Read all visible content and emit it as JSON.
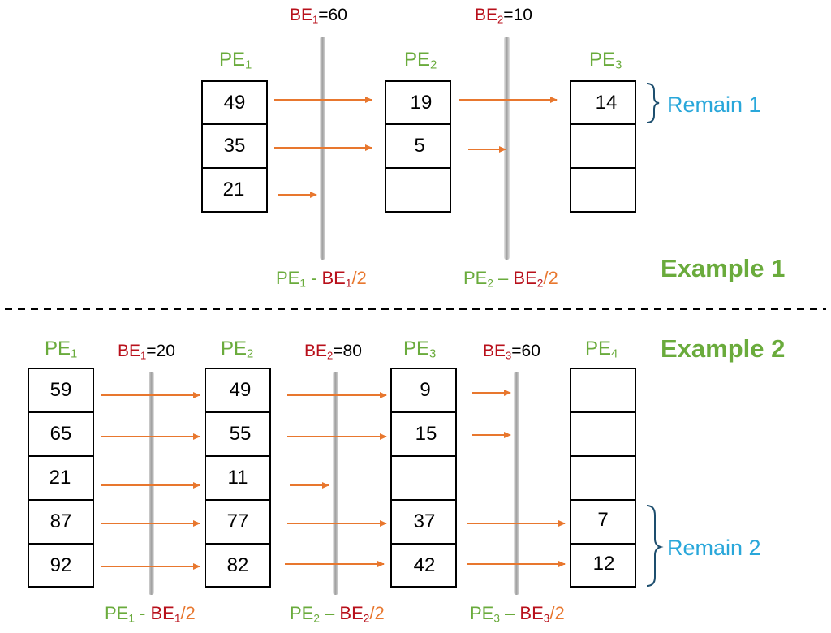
{
  "colors": {
    "pe": "#6aab3c",
    "be": "#b8101b",
    "arrow": "#e8772e",
    "remain": "#29a7da",
    "example": "#6aab3c"
  },
  "example1": {
    "title": "Example 1",
    "pe_labels": [
      {
        "base": "PE",
        "sub": "1"
      },
      {
        "base": "PE",
        "sub": "2"
      },
      {
        "base": "PE",
        "sub": "3"
      }
    ],
    "be_labels": [
      {
        "base": "BE",
        "sub": "1",
        "value": "=60"
      },
      {
        "base": "BE",
        "sub": "2",
        "value": "=10"
      }
    ],
    "columns": [
      [
        "49",
        "35",
        "21"
      ],
      [
        "19",
        "5",
        ""
      ],
      [
        "14",
        "",
        ""
      ]
    ],
    "formulas": [
      {
        "pe": "PE",
        "pe_sub": "1",
        "op": " - ",
        "be": "BE",
        "be_sub": "1",
        "div": "/2"
      },
      {
        "pe": "PE",
        "pe_sub": "2",
        "op": " – ",
        "be": "BE",
        "be_sub": "2",
        "div": "/2"
      }
    ],
    "remain_label": "Remain 1"
  },
  "example2": {
    "title": "Example 2",
    "pe_labels": [
      {
        "base": "PE",
        "sub": "1"
      },
      {
        "base": "PE",
        "sub": "2"
      },
      {
        "base": "PE",
        "sub": "3"
      },
      {
        "base": "PE",
        "sub": "4"
      }
    ],
    "be_labels": [
      {
        "base": "BE",
        "sub": "1",
        "value": "=20"
      },
      {
        "base": "BE",
        "sub": "2",
        "value": "=80"
      },
      {
        "base": "BE",
        "sub": "3",
        "value": "=60"
      }
    ],
    "columns": [
      [
        "59",
        "65",
        "21",
        "87",
        "92"
      ],
      [
        "49",
        "55",
        "11",
        "77",
        "82"
      ],
      [
        "9",
        "15",
        "",
        "37",
        "42"
      ],
      [
        "",
        "",
        "",
        "7",
        "12"
      ]
    ],
    "formulas": [
      {
        "pe": "PE",
        "pe_sub": "1",
        "op": " - ",
        "be": "BE",
        "be_sub": "1",
        "div": "/2"
      },
      {
        "pe": "PE",
        "pe_sub": "2",
        "op": " – ",
        "be": "BE",
        "be_sub": "2",
        "div": "/2"
      },
      {
        "pe": "PE",
        "pe_sub": "3",
        "op": " – ",
        "be": "BE",
        "be_sub": "3",
        "div": "/2"
      }
    ],
    "remain_label": "Remain 2"
  }
}
